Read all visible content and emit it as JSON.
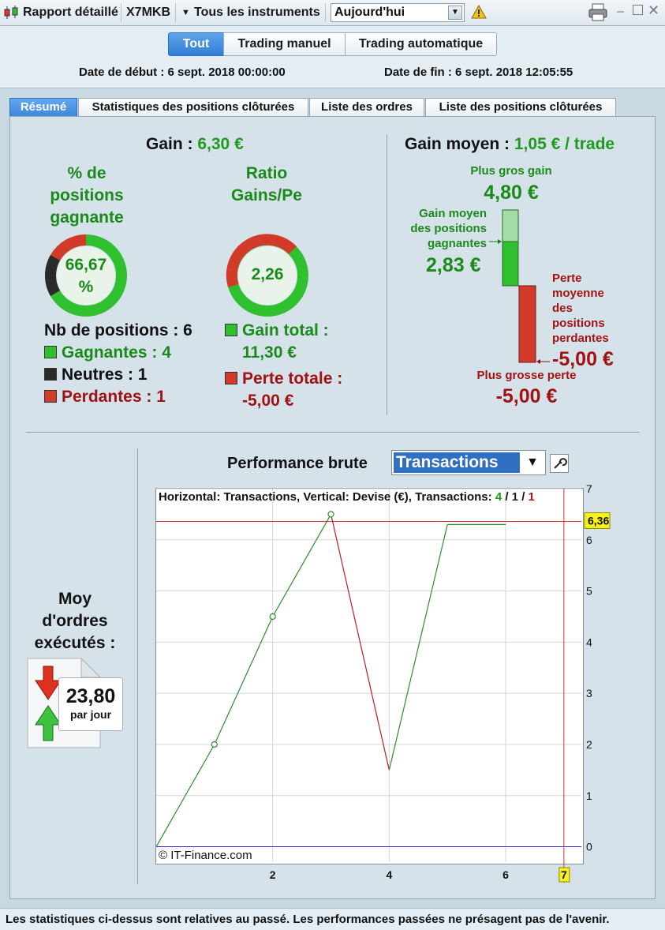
{
  "toolbar": {
    "report_label": "Rapport détaillé",
    "symbol": "X7MKB",
    "instruments_label": "Tous les instruments",
    "period_value": "Aujourd'hui"
  },
  "mode_tabs": [
    "Tout",
    "Trading manuel",
    "Trading automatique"
  ],
  "dates": {
    "start": "Date de début : 6 sept. 2018 00:00:00",
    "end": "Date de fin : 6 sept. 2018 12:05:55"
  },
  "tabs": [
    "Résumé",
    "Statistiques des positions clôturées",
    "Liste des ordres",
    "Liste des positions clôturées"
  ],
  "summary": {
    "gain_label": "Gain :",
    "gain_value": "6,30 €",
    "pct_title": [
      "% de",
      "positions",
      "gagnante"
    ],
    "pct_value": [
      "66,67",
      "%"
    ],
    "ratio_title": [
      "Ratio",
      "Gains/Pe"
    ],
    "ratio_value": "2,26",
    "nb_positions": "Nb de positions : 6",
    "winners": "Gagnantes : 4",
    "neutral": "Neutres : 1",
    "losers": "Perdantes : 1",
    "gain_total_label": "Gain total :",
    "gain_total_value": "11,30 €",
    "loss_total_label": "Perte totale :",
    "loss_total_value": "-5,00 €",
    "avg_gain_label": "Gain moyen :",
    "avg_gain_value": "1,05 € / trade",
    "biggest_gain_label": "Plus gros gain",
    "biggest_gain_value": "4,80 €",
    "avg_win_label": [
      "Gain moyen",
      "des positions",
      "gagnantes"
    ],
    "avg_win_value": "2,83 €",
    "avg_loss_label": [
      "Perte",
      "moyenne",
      "des",
      "positions",
      "perdantes"
    ],
    "avg_loss_value": "-5,00 €",
    "biggest_loss_label": "Plus grosse perte",
    "biggest_loss_value": "-5,00 €",
    "orders_label": [
      "Moy",
      "d'ordres",
      "exécutés :"
    ],
    "orders_value": "23,80",
    "orders_unit": "par jour"
  },
  "colors": {
    "win": "#2fbf2f",
    "neutral": "#2a2a2a",
    "loss": "#d23a2a",
    "accent": "#2f7fd6"
  },
  "performance": {
    "title": "Performance brute",
    "select_value": "Transactions",
    "chart_header_prefix": "Horizontal: Transactions, Vertical: Devise (€), Transactions:",
    "count_win": "4",
    "count_neutral": "1",
    "count_loss": "1",
    "slash": "/",
    "copyright": "© IT-Finance.com"
  },
  "chart_data": {
    "type": "line",
    "x": [
      0,
      1,
      2,
      3,
      4,
      5,
      6
    ],
    "y": [
      0,
      2.0,
      4.5,
      6.5,
      1.5,
      6.3,
      6.3
    ],
    "segment_colors": [
      "green",
      "green",
      "green",
      "red",
      "green",
      "green"
    ],
    "point_markers": [
      1,
      2,
      3
    ],
    "xlim": [
      0,
      7.3
    ],
    "ylim": [
      -0.3,
      7
    ],
    "x_ticks": [
      "2",
      "4",
      "6"
    ],
    "x_tick_values": [
      2,
      4,
      6
    ],
    "y_ticks": [
      "0",
      "1",
      "2",
      "3",
      "4",
      "5",
      "6",
      "7"
    ],
    "y_tick_values": [
      0,
      1,
      2,
      3,
      4,
      5,
      6,
      7
    ],
    "crosshair_x": 7,
    "crosshair_x_label": "7",
    "crosshair_y": 6.36,
    "crosshair_y_label": "6,36",
    "baseline_y": 0,
    "grid": true
  },
  "footer": "Les statistiques ci-dessus sont relatives au passé. Les performances passées ne présagent pas de l'avenir."
}
